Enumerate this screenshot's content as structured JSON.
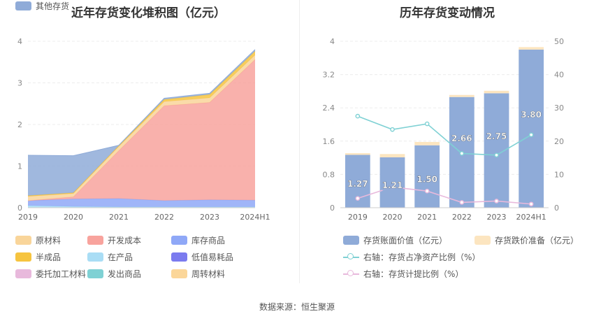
{
  "left_chart": {
    "title": "近年存货变化堆积图（亿元）",
    "chart_data": {
      "type": "area",
      "x": [
        "2019",
        "2020",
        "2021",
        "2022",
        "2023",
        "2024H1"
      ],
      "ylim": [
        0,
        4
      ],
      "yticks": [
        "0",
        "1",
        "2",
        "3",
        "4"
      ],
      "grid": true,
      "stack_order": [
        "在产品",
        "库存商品",
        "开发成本",
        "原材料",
        "半成品",
        "低值易耗品",
        "委托加工材料",
        "发出商品",
        "周转材料",
        "其他存货"
      ],
      "series": [
        {
          "name": "原材料",
          "color": "#f9d59a",
          "values": [
            0.1,
            0.08,
            0.1,
            0.1,
            0.11,
            0.11
          ]
        },
        {
          "name": "开发成本",
          "color": "#f8a39d",
          "values": [
            0.0,
            0.05,
            1.15,
            2.28,
            2.34,
            3.38
          ]
        },
        {
          "name": "库存商品",
          "color": "#8fa8f7",
          "values": [
            0.12,
            0.18,
            0.2,
            0.15,
            0.17,
            0.16
          ]
        },
        {
          "name": "半成品",
          "color": "#f6c43f",
          "values": [
            0.02,
            0.02,
            0.02,
            0.05,
            0.08,
            0.09
          ]
        },
        {
          "name": "在产品",
          "color": "#a9ddf5",
          "values": [
            0.05,
            0.03,
            0.02,
            0.02,
            0.02,
            0.02
          ]
        },
        {
          "name": "低值易耗品",
          "color": "#7b7bef",
          "values": [
            0.0,
            0.0,
            0.0,
            0.0,
            0.0,
            0.0
          ]
        },
        {
          "name": "委托加工材料",
          "color": "#e8b9dc",
          "values": [
            0.0,
            0.0,
            0.0,
            0.0,
            0.0,
            0.0
          ]
        },
        {
          "name": "发出商品",
          "color": "#7fd1d4",
          "values": [
            0.0,
            0.0,
            0.0,
            0.0,
            0.0,
            0.0
          ]
        },
        {
          "name": "周转材料",
          "color": "#fbd699",
          "values": [
            0.0,
            0.0,
            0.0,
            0.0,
            0.0,
            0.0
          ]
        },
        {
          "name": "其他存货",
          "color": "#8fabd8",
          "values": [
            0.97,
            0.89,
            0.01,
            0.03,
            0.03,
            0.04
          ]
        }
      ]
    }
  },
  "right_chart": {
    "title": "历年存货变动情况",
    "chart_data": {
      "type": "bar",
      "categories": [
        "2019",
        "2020",
        "2021",
        "2022",
        "2023",
        "2024H1"
      ],
      "ylim": [
        0,
        4
      ],
      "yticks": [
        "0",
        "0.8",
        "1.6",
        "2.4",
        "3.2",
        "4"
      ],
      "y2lim": [
        0,
        50
      ],
      "y2ticks": [
        "0",
        "10",
        "20",
        "30",
        "40",
        "50"
      ],
      "grid": true,
      "series": [
        {
          "name": "存货账面价值（亿元）",
          "type": "bar",
          "color": "#8fabd8",
          "values": [
            1.27,
            1.21,
            1.5,
            2.66,
            2.75,
            3.8
          ],
          "labels": [
            "1.27",
            "1.21",
            "1.50",
            "2.66",
            "2.75",
            "3.80"
          ]
        },
        {
          "name": "存货跌价准备（亿元）",
          "type": "bar",
          "color": "#fce5c0",
          "values": [
            0.04,
            0.08,
            0.08,
            0.05,
            0.06,
            0.06
          ]
        },
        {
          "name": "右轴：存货占净资产比例（%）",
          "type": "line",
          "axis": "right",
          "color": "#7fd1d4",
          "values": [
            27.5,
            23.5,
            25.2,
            16.3,
            15.8,
            21.9
          ]
        },
        {
          "name": "右轴：存货计提比例（%）",
          "type": "line",
          "axis": "right",
          "color": "#e8b9dc",
          "values": [
            2.8,
            6.2,
            5.0,
            1.6,
            2.0,
            1.1
          ]
        }
      ]
    }
  },
  "source": "数据来源：恒生聚源"
}
